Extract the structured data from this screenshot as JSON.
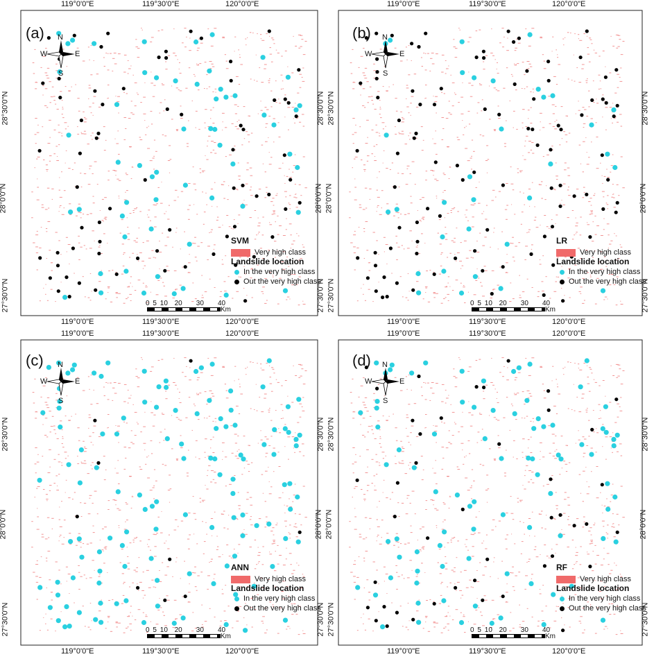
{
  "colors": {
    "very_high": "#f08080",
    "in_class": "#2ad0e0",
    "out_class": "#000000"
  },
  "axis": {
    "lon_ticks": [
      "119°0'0\"E",
      "119°30'0\"E",
      "120°0'0\"E"
    ],
    "lat_ticks": [
      "28°30'0\"N",
      "28°0'0\"N",
      "27°30'0\"N"
    ]
  },
  "compass": {
    "n": "N",
    "s": "S",
    "e": "E",
    "w": "W"
  },
  "legend": {
    "very_high_label": "Very high class",
    "title": "Landslide location",
    "in_label": "In the very high class",
    "out_label": "Out the very high class"
  },
  "scale": {
    "labels": [
      "0",
      "5",
      "10",
      "20",
      "30",
      "40"
    ],
    "unit": "Km"
  },
  "panels": [
    {
      "id": "a",
      "label": "(a)",
      "model": "SVM"
    },
    {
      "id": "b",
      "label": "(b)",
      "model": "LR"
    },
    {
      "id": "c",
      "label": "(c)",
      "model": "ANN"
    },
    {
      "id": "d",
      "label": "(d)",
      "model": "RF"
    }
  ]
}
